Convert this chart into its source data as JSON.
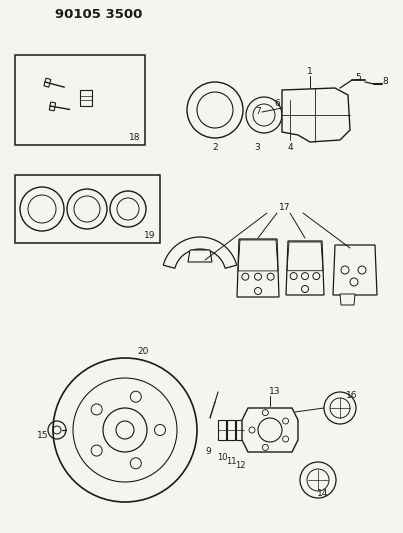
{
  "title": "90105 3500",
  "bg_color": "#f5f5f0",
  "line_color": "#1a1a1a",
  "fig_width": 4.03,
  "fig_height": 5.33,
  "dpi": 100
}
